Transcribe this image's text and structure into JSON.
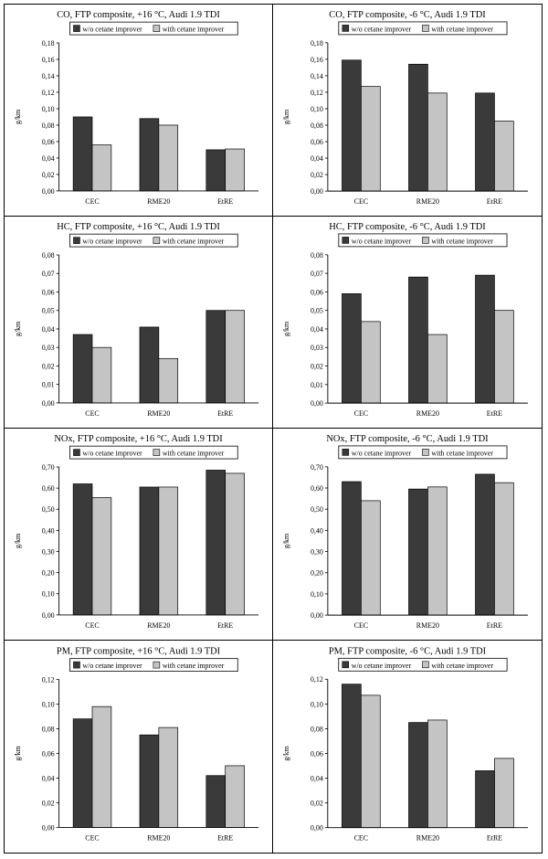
{
  "chart_data": [
    {
      "type": "bar",
      "title": "CO, FTP composite, +16 °C, Audi 1.9 TDI",
      "ylabel": "g/km",
      "categories": [
        "CEC",
        "RME20",
        "EtRE"
      ],
      "series": [
        {
          "name": "w/o cetane improver",
          "values": [
            0.09,
            0.088,
            0.05
          ]
        },
        {
          "name": "with cetane improver",
          "values": [
            0.056,
            0.08,
            0.051
          ]
        }
      ],
      "ylim": [
        0,
        0.18
      ],
      "ystep": 0.02,
      "ydecimals": 2,
      "yticks": [
        "0,00",
        "0,02",
        "0,04",
        "0,06",
        "0,08",
        "0,10",
        "0,12",
        "0,14",
        "0,16",
        "0,18"
      ]
    },
    {
      "type": "bar",
      "title": "CO, FTP composite, -6 °C, Audi 1.9 TDI",
      "ylabel": "g/km",
      "categories": [
        "CEC",
        "RME20",
        "EtRE"
      ],
      "series": [
        {
          "name": "w/o cetane improver",
          "values": [
            0.159,
            0.154,
            0.119
          ]
        },
        {
          "name": "with cetane improver",
          "values": [
            0.127,
            0.119,
            0.085
          ]
        }
      ],
      "ylim": [
        0,
        0.18
      ],
      "ystep": 0.02,
      "ydecimals": 2,
      "yticks": [
        "0,00",
        "0,02",
        "0,04",
        "0,06",
        "0,08",
        "0,10",
        "0,12",
        "0,14",
        "0,16",
        "0,18"
      ]
    },
    {
      "type": "bar",
      "title": "HC, FTP composite, +16 °C, Audi 1.9 TDI",
      "ylabel": "g/km",
      "categories": [
        "CEC",
        "RME20",
        "EtRE"
      ],
      "series": [
        {
          "name": "w/o cetane improver",
          "values": [
            0.037,
            0.041,
            0.05
          ]
        },
        {
          "name": "with cetane improver",
          "values": [
            0.03,
            0.024,
            0.05
          ]
        }
      ],
      "ylim": [
        0,
        0.08
      ],
      "ystep": 0.01,
      "ydecimals": 2,
      "yticks": [
        "0,00",
        "0,01",
        "0,02",
        "0,03",
        "0,04",
        "0,05",
        "0,06",
        "0,07",
        "0,08"
      ]
    },
    {
      "type": "bar",
      "title": "HC, FTP composite, -6 °C, Audi 1.9 TDI",
      "ylabel": "g/km",
      "categories": [
        "CEC",
        "RME20",
        "EtRE"
      ],
      "series": [
        {
          "name": "w/o cetane improver",
          "values": [
            0.059,
            0.068,
            0.069
          ]
        },
        {
          "name": "with cetane improver",
          "values": [
            0.044,
            0.037,
            0.05
          ]
        }
      ],
      "ylim": [
        0,
        0.08
      ],
      "ystep": 0.01,
      "ydecimals": 2,
      "yticks": [
        "0,00",
        "0,01",
        "0,02",
        "0,03",
        "0,04",
        "0,05",
        "0,06",
        "0,07",
        "0,08"
      ]
    },
    {
      "type": "bar",
      "title": "NOx, FTP composite, +16 °C, Audi 1.9 TDI",
      "ylabel": "g/km",
      "categories": [
        "CEC",
        "RME20",
        "EtRE"
      ],
      "series": [
        {
          "name": "w/o cetane improver",
          "values": [
            0.62,
            0.605,
            0.685
          ]
        },
        {
          "name": "with cetane improver",
          "values": [
            0.555,
            0.605,
            0.67
          ]
        }
      ],
      "ylim": [
        0,
        0.7
      ],
      "ystep": 0.1,
      "ydecimals": 2,
      "yticks": [
        "0,00",
        "0,10",
        "0,20",
        "0,30",
        "0,40",
        "0,50",
        "0,60",
        "0,70"
      ]
    },
    {
      "type": "bar",
      "title": "NOx, FTP composite, -6 °C, Audi 1.9 TDI",
      "ylabel": "g/km",
      "categories": [
        "CEC",
        "RME20",
        "EtRE"
      ],
      "series": [
        {
          "name": "w/o cetane improver",
          "values": [
            0.63,
            0.595,
            0.665
          ]
        },
        {
          "name": "with cetane improver",
          "values": [
            0.54,
            0.605,
            0.625
          ]
        }
      ],
      "ylim": [
        0,
        0.7
      ],
      "ystep": 0.1,
      "ydecimals": 2,
      "yticks": [
        "0,00",
        "0,10",
        "0,20",
        "0,30",
        "0,40",
        "0,50",
        "0,60",
        "0,70"
      ]
    },
    {
      "type": "bar",
      "title": "PM, FTP composite, +16 °C, Audi 1.9 TDI",
      "ylabel": "g/km",
      "categories": [
        "CEC",
        "RME20",
        "EtRE"
      ],
      "series": [
        {
          "name": "w/o cetane improver",
          "values": [
            0.088,
            0.075,
            0.042
          ]
        },
        {
          "name": "with cetane improver",
          "values": [
            0.098,
            0.081,
            0.05
          ]
        }
      ],
      "ylim": [
        0,
        0.12
      ],
      "ystep": 0.02,
      "ydecimals": 2,
      "yticks": [
        "0,00",
        "0,02",
        "0,04",
        "0,06",
        "0,08",
        "0,10",
        "0,12"
      ]
    },
    {
      "type": "bar",
      "title": "PM, FTP composite, -6 °C, Audi 1.9 TDI",
      "ylabel": "g/km",
      "categories": [
        "CEC",
        "RME20",
        "EtRE"
      ],
      "series": [
        {
          "name": "w/o cetane improver",
          "values": [
            0.116,
            0.085,
            0.046
          ]
        },
        {
          "name": "with cetane improver",
          "values": [
            0.107,
            0.087,
            0.056
          ]
        }
      ],
      "ylim": [
        0,
        0.12
      ],
      "ystep": 0.02,
      "ydecimals": 2,
      "yticks": [
        "0,00",
        "0,02",
        "0,04",
        "0,06",
        "0,08",
        "0,10",
        "0,12"
      ]
    }
  ],
  "colors": {
    "series_dark": "#3a3a3a",
    "series_light": "#c4c4c4",
    "axis": "#000000",
    "background": "#ffffff"
  }
}
